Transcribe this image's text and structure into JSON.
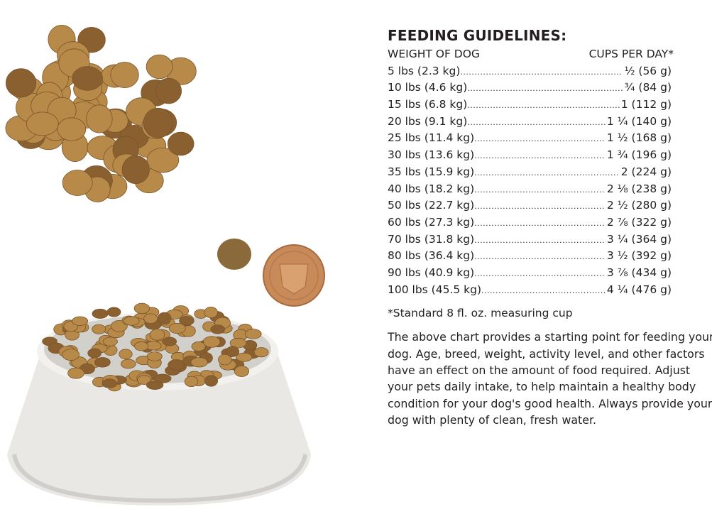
{
  "guide": {
    "title": "FEEDING GUIDELINES:",
    "col_weight": "WEIGHT OF DOG",
    "col_cups": "CUPS PER DAY*",
    "rows": [
      {
        "weight": "5 lbs (2.3 kg)",
        "cups": "½ (56 g)"
      },
      {
        "weight": "10 lbs (4.6 kg)",
        "cups": "¾ (84 g)"
      },
      {
        "weight": "15 lbs (6.8 kg)",
        "cups": "1 (112 g)"
      },
      {
        "weight": "20 lbs (9.1 kg)",
        "cups": "1 ¼ (140 g)"
      },
      {
        "weight": "25 lbs (11.4 kg)",
        "cups": "1 ½ (168 g)"
      },
      {
        "weight": "30 lbs (13.6 kg)",
        "cups": "1 ¾ (196 g)"
      },
      {
        "weight": "35 lbs (15.9 kg)",
        "cups": "2 (224 g)"
      },
      {
        "weight": "40 lbs (18.2 kg)",
        "cups": "2 ⅛ (238 g)"
      },
      {
        "weight": "50 lbs (22.7 kg)",
        "cups": "2 ½ (280 g)"
      },
      {
        "weight": "60 lbs (27.3 kg)",
        "cups": "2 ⅞ (322 g)"
      },
      {
        "weight": "70 lbs (31.8 kg)",
        "cups": "3 ¼ (364 g)"
      },
      {
        "weight": "80 lbs (36.4 kg)",
        "cups": "3 ½ (392 g)"
      },
      {
        "weight": "90 lbs (40.9 kg)",
        "cups": "3 ⅞ (434 g)"
      },
      {
        "weight": "100 lbs (45.5 kg)",
        "cups": "4 ¼ (476 g)"
      }
    ],
    "footnote": "*Standard 8 fl. oz. measuring cup",
    "paragraph": "The above chart provides a starting point for feeding your dog. Age, breed, weight, activity level, and other factors have an effect on the amount of food required. Adjust your pets daily intake, to help maintain a healthy body condition for your dog's good health. Always provide your dog with plenty of clean, fresh water."
  },
  "colors": {
    "kibble": "#b88a4a",
    "kibble_dark": "#8a6030",
    "bowl": "#e9e8e4",
    "penny": "#c98a5a"
  }
}
